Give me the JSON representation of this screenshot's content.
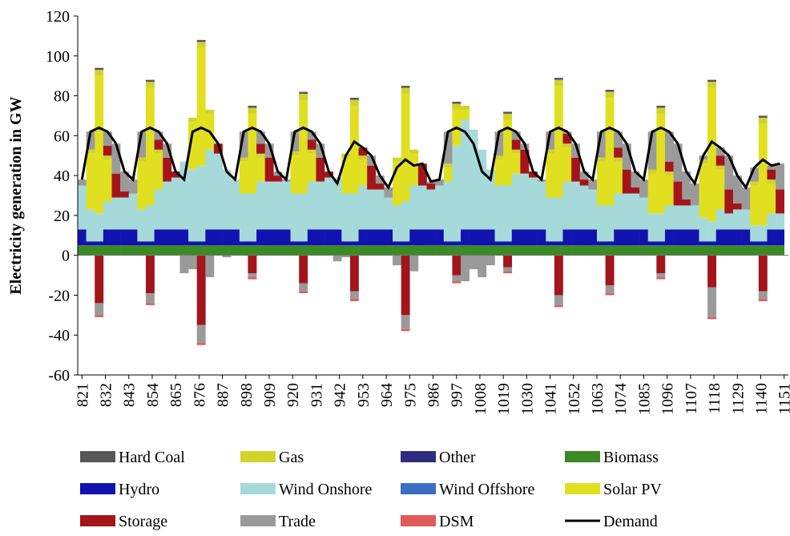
{
  "chart_data": {
    "type": "bar",
    "stacked": true,
    "y_label": "Electricity generation in GW",
    "x": [
      821,
      825,
      829,
      833,
      837,
      841,
      845,
      849,
      853,
      857,
      861,
      865,
      869,
      873,
      877,
      881,
      885,
      889,
      893,
      897,
      901,
      905,
      909,
      913,
      917,
      921,
      925,
      929,
      933,
      937,
      941,
      945,
      949,
      953,
      957,
      961,
      965,
      969,
      973,
      977,
      981,
      985,
      989,
      993,
      997,
      1001,
      1005,
      1009,
      1013,
      1017,
      1021,
      1025,
      1029,
      1033,
      1037,
      1041,
      1045,
      1049,
      1053,
      1057,
      1061,
      1065,
      1069,
      1073,
      1077,
      1081,
      1085,
      1089,
      1093,
      1097,
      1101,
      1105,
      1109,
      1113,
      1117,
      1121,
      1125,
      1129,
      1133,
      1137,
      1141,
      1145,
      1149
    ],
    "xlim": [
      819,
      1153
    ],
    "xticks": [
      821,
      832,
      843,
      854,
      865,
      876,
      887,
      898,
      909,
      920,
      931,
      942,
      953,
      964,
      975,
      986,
      997,
      1008,
      1019,
      1030,
      1041,
      1052,
      1063,
      1074,
      1085,
      1096,
      1107,
      1118,
      1129,
      1140,
      1151
    ],
    "ylim": [
      -60,
      120
    ],
    "yticks": [
      -60,
      -40,
      -20,
      0,
      20,
      40,
      60,
      80,
      100,
      120
    ],
    "series": [
      {
        "name": "Hard Coal",
        "color": "#575757",
        "values": [
          0,
          0,
          1,
          0,
          0,
          0,
          0,
          0,
          1,
          0,
          0,
          0,
          0,
          0,
          1,
          0,
          0,
          0,
          0,
          0,
          1,
          0,
          0,
          0,
          0,
          0,
          1,
          0,
          0,
          0,
          0,
          0,
          1,
          0,
          0,
          0,
          0,
          0,
          1,
          0,
          0,
          0,
          0,
          0,
          1,
          0,
          0,
          0,
          0,
          0,
          1,
          0,
          0,
          0,
          0,
          0,
          1,
          0,
          0,
          0,
          0,
          0,
          1,
          0,
          0,
          0,
          0,
          0,
          1,
          0,
          0,
          0,
          0,
          0,
          1,
          0,
          0,
          0,
          0,
          0,
          1,
          0,
          0
        ]
      },
      {
        "name": "Gas",
        "color": "#d2d22c",
        "values": [
          0,
          2,
          3,
          2,
          0,
          0,
          0,
          2,
          3,
          2,
          0,
          0,
          0,
          2,
          3,
          2,
          0,
          0,
          0,
          2,
          3,
          2,
          0,
          0,
          0,
          2,
          3,
          2,
          0,
          0,
          0,
          2,
          3,
          2,
          0,
          0,
          0,
          2,
          3,
          2,
          0,
          0,
          0,
          2,
          3,
          2,
          0,
          0,
          0,
          2,
          3,
          2,
          0,
          0,
          0,
          2,
          3,
          2,
          0,
          0,
          0,
          2,
          3,
          2,
          0,
          0,
          0,
          2,
          3,
          2,
          0,
          0,
          0,
          2,
          3,
          2,
          0,
          0,
          0,
          2,
          3,
          2,
          0
        ]
      },
      {
        "name": "Other",
        "color": "#2e2e80",
        "values": [
          0,
          0,
          0,
          0,
          0,
          0,
          0,
          0,
          0,
          0,
          0,
          0,
          0,
          0,
          0,
          0,
          0,
          0,
          0,
          0,
          0,
          0,
          0,
          0,
          0,
          0,
          0,
          0,
          0,
          0,
          0,
          0,
          0,
          0,
          0,
          0,
          0,
          0,
          0,
          0,
          0,
          0,
          0,
          0,
          0,
          0,
          0,
          0,
          0,
          0,
          0,
          0,
          0,
          0,
          0,
          0,
          0,
          0,
          0,
          0,
          0,
          0,
          0,
          0,
          0,
          0,
          0,
          0,
          0,
          0,
          0,
          0,
          0,
          0,
          0,
          0,
          0,
          0,
          0,
          0,
          0,
          0,
          0
        ]
      },
      {
        "name": "Biomass",
        "color": "#3b8a25",
        "values": [
          5,
          5,
          5,
          5,
          5,
          5,
          5,
          5,
          5,
          5,
          5,
          5,
          5,
          5,
          5,
          5,
          5,
          5,
          5,
          5,
          5,
          5,
          5,
          5,
          5,
          5,
          5,
          5,
          5,
          5,
          5,
          5,
          5,
          5,
          5,
          5,
          5,
          5,
          5,
          5,
          5,
          5,
          5,
          5,
          5,
          5,
          5,
          5,
          5,
          5,
          5,
          5,
          5,
          5,
          5,
          5,
          5,
          5,
          5,
          5,
          5,
          5,
          5,
          5,
          5,
          5,
          5,
          5,
          5,
          5,
          5,
          5,
          5,
          5,
          5,
          5,
          5,
          5,
          5,
          5,
          5,
          5,
          5
        ]
      },
      {
        "name": "Hydro",
        "color": "#1212b0",
        "values": [
          8,
          2,
          2,
          8,
          8,
          8,
          8,
          2,
          2,
          8,
          8,
          8,
          8,
          2,
          2,
          8,
          8,
          8,
          8,
          2,
          2,
          8,
          8,
          8,
          8,
          2,
          2,
          8,
          8,
          8,
          8,
          2,
          2,
          8,
          8,
          8,
          8,
          2,
          2,
          8,
          8,
          8,
          8,
          2,
          2,
          8,
          8,
          8,
          8,
          2,
          2,
          8,
          8,
          8,
          8,
          2,
          2,
          8,
          8,
          8,
          8,
          2,
          2,
          8,
          8,
          8,
          8,
          2,
          2,
          8,
          8,
          8,
          8,
          2,
          2,
          8,
          8,
          8,
          8,
          2,
          2,
          8,
          8
        ]
      },
      {
        "name": "Wind Onshore",
        "color": "#a6dada",
        "values": [
          22,
          16,
          14,
          14,
          16,
          16,
          18,
          16,
          18,
          20,
          24,
          26,
          34,
          36,
          38,
          40,
          38,
          30,
          25,
          24,
          24,
          24,
          24,
          24,
          24,
          24,
          24,
          24,
          24,
          26,
          26,
          24,
          24,
          22,
          20,
          20,
          16,
          18,
          20,
          22,
          22,
          20,
          22,
          30,
          48,
          55,
          50,
          40,
          30,
          28,
          28,
          28,
          28,
          26,
          24,
          22,
          22,
          24,
          24,
          22,
          20,
          18,
          18,
          18,
          18,
          18,
          16,
          14,
          14,
          12,
          12,
          12,
          12,
          12,
          10,
          10,
          8,
          10,
          10,
          8,
          8,
          8,
          8
        ]
      },
      {
        "name": "Wind Offshore",
        "color": "#3a6fc4",
        "values": [
          0,
          0,
          0,
          0,
          0,
          0,
          0,
          0,
          0,
          0,
          0,
          0,
          0,
          0,
          0,
          0,
          0,
          0,
          0,
          0,
          0,
          0,
          0,
          0,
          0,
          0,
          0,
          0,
          0,
          0,
          0,
          0,
          0,
          0,
          0,
          0,
          0,
          0,
          0,
          0,
          0,
          0,
          0,
          0,
          0,
          0,
          0,
          0,
          0,
          0,
          0,
          0,
          0,
          0,
          0,
          0,
          0,
          0,
          0,
          0,
          0,
          0,
          0,
          0,
          0,
          0,
          0,
          0,
          0,
          0,
          0,
          0,
          0,
          0,
          0,
          0,
          0,
          0,
          0,
          0,
          0,
          0,
          0
        ]
      },
      {
        "name": "Solar PV",
        "color": "#e0e020",
        "values": [
          0,
          28,
          69,
          21,
          0,
          0,
          0,
          24,
          59,
          18,
          0,
          0,
          0,
          24,
          59,
          18,
          0,
          0,
          0,
          16,
          40,
          12,
          0,
          0,
          0,
          19,
          47,
          14,
          0,
          0,
          0,
          18,
          44,
          13,
          0,
          0,
          0,
          22,
          54,
          16,
          0,
          0,
          0,
          7,
          18,
          5,
          0,
          0,
          0,
          13,
          33,
          10,
          0,
          0,
          0,
          22,
          56,
          17,
          0,
          0,
          0,
          22,
          54,
          16,
          0,
          0,
          0,
          20,
          50,
          15,
          0,
          0,
          0,
          27,
          67,
          20,
          0,
          0,
          0,
          20,
          51,
          15,
          0
        ]
      },
      {
        "name": "Storage",
        "color": "#a3151a",
        "values": [
          0,
          0,
          -24,
          5,
          12,
          3,
          0,
          0,
          -19,
          5,
          12,
          3,
          0,
          0,
          -35,
          0,
          5,
          0,
          0,
          0,
          -9,
          5,
          12,
          3,
          0,
          0,
          -14,
          5,
          12,
          3,
          0,
          0,
          -18,
          4,
          12,
          3,
          0,
          0,
          -30,
          0,
          11,
          3,
          0,
          0,
          -10,
          0,
          0,
          0,
          0,
          0,
          -6,
          5,
          12,
          3,
          0,
          0,
          -20,
          5,
          12,
          3,
          0,
          0,
          -15,
          5,
          12,
          3,
          0,
          0,
          -9,
          5,
          12,
          3,
          0,
          0,
          -16,
          5,
          12,
          3,
          0,
          0,
          -18,
          5,
          12
        ]
      },
      {
        "name": "Trade",
        "color": "#9a9a9a",
        "values": [
          3,
          9,
          -6,
          7,
          15,
          10,
          7,
          13,
          -5,
          4,
          7,
          0,
          -9,
          -7,
          -9,
          -11,
          0,
          -1,
          0,
          13,
          -2,
          6,
          7,
          2,
          1,
          10,
          -4,
          4,
          7,
          0,
          -3,
          -1,
          -4,
          0,
          5,
          4,
          5,
          -5,
          -7,
          -8,
          0,
          1,
          3,
          16,
          -3,
          -13,
          -7,
          -11,
          -5,
          12,
          -2,
          4,
          3,
          0,
          1,
          9,
          -5,
          1,
          7,
          4,
          5,
          13,
          -4,
          8,
          13,
          8,
          9,
          19,
          -2,
          15,
          19,
          14,
          11,
          2,
          -15,
          4,
          17,
          14,
          11,
          7,
          -4,
          2,
          13
        ]
      },
      {
        "name": "DSM",
        "color": "#e05a5a",
        "values": [
          0,
          0,
          -1,
          0,
          0,
          0,
          0,
          0,
          -1,
          0,
          0,
          0,
          0,
          0,
          -1,
          0,
          0,
          0,
          0,
          0,
          -1,
          0,
          0,
          0,
          0,
          0,
          -1,
          0,
          0,
          0,
          0,
          0,
          -1,
          0,
          0,
          0,
          0,
          0,
          -1,
          0,
          0,
          0,
          0,
          0,
          -1,
          0,
          0,
          0,
          0,
          0,
          -1,
          0,
          0,
          0,
          0,
          0,
          -1,
          0,
          0,
          0,
          0,
          0,
          -1,
          0,
          0,
          0,
          0,
          0,
          -1,
          0,
          0,
          0,
          0,
          0,
          -1,
          0,
          0,
          0,
          0,
          0,
          -1,
          0,
          0
        ]
      },
      {
        "name": "Demand",
        "color": "#000000",
        "type": "line",
        "values": [
          38,
          62,
          64,
          62,
          56,
          42,
          38,
          62,
          64,
          62,
          56,
          42,
          38,
          62,
          64,
          62,
          56,
          42,
          38,
          62,
          64,
          62,
          56,
          42,
          38,
          62,
          64,
          62,
          56,
          42,
          36,
          50,
          57,
          54,
          50,
          40,
          34,
          44,
          48,
          45,
          46,
          37,
          38,
          62,
          64,
          62,
          56,
          42,
          38,
          62,
          64,
          62,
          56,
          42,
          38,
          62,
          64,
          62,
          56,
          42,
          38,
          62,
          64,
          62,
          56,
          42,
          38,
          62,
          64,
          62,
          56,
          42,
          36,
          50,
          57,
          54,
          50,
          40,
          34,
          44,
          48,
          45,
          46
        ]
      }
    ]
  }
}
